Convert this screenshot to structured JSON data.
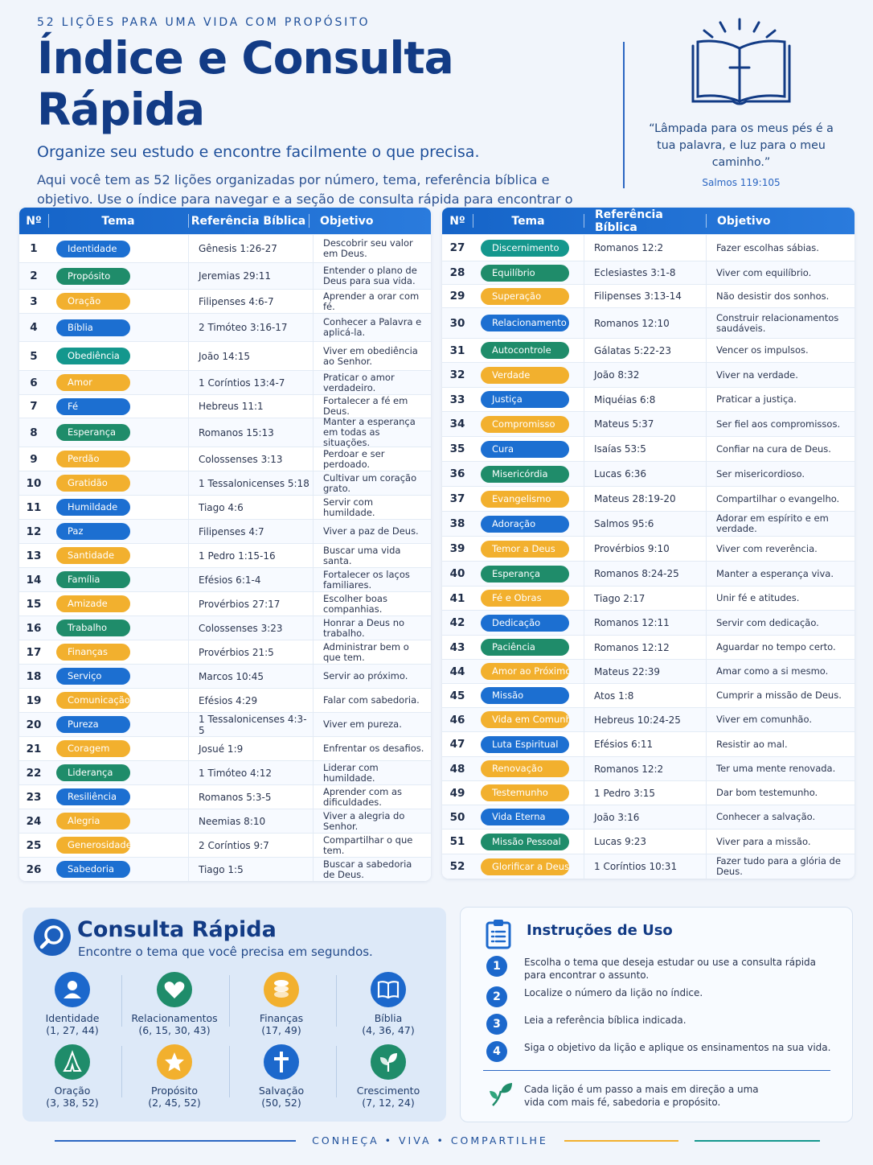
{
  "header": {
    "kicker": "52 LIÇÕES PARA UMA VIDA COM PROPÓSITO",
    "title": "Índice e Consulta Rápida",
    "subtitle": "Organize seu estudo e encontre facilmente o que precisa.",
    "intro": "Aqui você tem as 52 lições organizadas por número, tema, referência bíblica e objetivo. Use o índice para navegar e a seção de consulta rápida para encontrar o assunto que deseja de forma ágil."
  },
  "quote": {
    "text": "“Lâmpada para os meus pés é a tua palavra, e luz para o meu caminho.”",
    "ref": "Salmos 119:105"
  },
  "table": {
    "headers": {
      "num": "Nº",
      "tema": "Tema",
      "ref": "Referência Bíblica",
      "obj": "Objetivo"
    },
    "left": [
      {
        "n": "1",
        "tema": "Identidade",
        "color": "blue",
        "ref": "Gênesis 1:26-27",
        "obj": "Descobrir seu valor em Deus."
      },
      {
        "n": "2",
        "tema": "Propósito",
        "color": "green",
        "ref": "Jeremias 29:11",
        "obj": "Entender o plano de Deus para sua vida."
      },
      {
        "n": "3",
        "tema": "Oração",
        "color": "orange",
        "ref": "Filipenses 4:6-7",
        "obj": "Aprender a orar com fé."
      },
      {
        "n": "4",
        "tema": "Bíblia",
        "color": "blue",
        "ref": "2 Timóteo 3:16-17",
        "obj": "Conhecer a Palavra e aplicá-la."
      },
      {
        "n": "5",
        "tema": "Obediência",
        "color": "teal",
        "ref": "João 14:15",
        "obj": "Viver em obediência ao Senhor."
      },
      {
        "n": "6",
        "tema": "Amor",
        "color": "orange",
        "ref": "1 Coríntios 13:4-7",
        "obj": "Praticar o amor verdadeiro."
      },
      {
        "n": "7",
        "tema": "Fé",
        "color": "blue",
        "ref": "Hebreus 11:1",
        "obj": "Fortalecer a fé em Deus."
      },
      {
        "n": "8",
        "tema": "Esperança",
        "color": "green",
        "ref": "Romanos 15:13",
        "obj": "Manter a esperança em todas as situações."
      },
      {
        "n": "9",
        "tema": "Perdão",
        "color": "orange",
        "ref": "Colossenses 3:13",
        "obj": "Perdoar e ser perdoado."
      },
      {
        "n": "10",
        "tema": "Gratidão",
        "color": "orange",
        "ref": "1 Tessalonicenses 5:18",
        "obj": "Cultivar um coração grato."
      },
      {
        "n": "11",
        "tema": "Humildade",
        "color": "blue",
        "ref": "Tiago 4:6",
        "obj": "Servir com humildade."
      },
      {
        "n": "12",
        "tema": "Paz",
        "color": "blue",
        "ref": "Filipenses 4:7",
        "obj": "Viver a paz de Deus."
      },
      {
        "n": "13",
        "tema": "Santidade",
        "color": "orange",
        "ref": "1 Pedro 1:15-16",
        "obj": "Buscar uma vida santa."
      },
      {
        "n": "14",
        "tema": "Família",
        "color": "green",
        "ref": "Efésios 6:1-4",
        "obj": "Fortalecer os laços familiares."
      },
      {
        "n": "15",
        "tema": "Amizade",
        "color": "orange",
        "ref": "Provérbios 27:17",
        "obj": "Escolher boas companhias."
      },
      {
        "n": "16",
        "tema": "Trabalho",
        "color": "green",
        "ref": "Colossenses 3:23",
        "obj": "Honrar a Deus no trabalho."
      },
      {
        "n": "17",
        "tema": "Finanças",
        "color": "orange",
        "ref": "Provérbios 21:5",
        "obj": "Administrar bem o que tem."
      },
      {
        "n": "18",
        "tema": "Serviço",
        "color": "blue",
        "ref": "Marcos 10:45",
        "obj": "Servir ao próximo."
      },
      {
        "n": "19",
        "tema": "Comunicação",
        "color": "orange",
        "ref": "Efésios 4:29",
        "obj": "Falar com sabedoria."
      },
      {
        "n": "20",
        "tema": "Pureza",
        "color": "blue",
        "ref": "1 Tessalonicenses 4:3-5",
        "obj": "Viver em pureza."
      },
      {
        "n": "21",
        "tema": "Coragem",
        "color": "orange",
        "ref": "Josué 1:9",
        "obj": "Enfrentar os desafios."
      },
      {
        "n": "22",
        "tema": "Liderança",
        "color": "green",
        "ref": "1 Timóteo 4:12",
        "obj": "Liderar com humildade."
      },
      {
        "n": "23",
        "tema": "Resiliência",
        "color": "blue",
        "ref": "Romanos 5:3-5",
        "obj": "Aprender com as dificuldades."
      },
      {
        "n": "24",
        "tema": "Alegria",
        "color": "orange",
        "ref": "Neemias 8:10",
        "obj": "Viver a alegria do Senhor."
      },
      {
        "n": "25",
        "tema": "Generosidade",
        "color": "orange",
        "ref": "2 Coríntios 9:7",
        "obj": "Compartilhar o que tem."
      },
      {
        "n": "26",
        "tema": "Sabedoria",
        "color": "blue",
        "ref": "Tiago 1:5",
        "obj": "Buscar a sabedoria de Deus."
      }
    ],
    "right": [
      {
        "n": "27",
        "tema": "Discernimento",
        "color": "teal",
        "ref": "Romanos 12:2",
        "obj": "Fazer escolhas sábias."
      },
      {
        "n": "28",
        "tema": "Equilíbrio",
        "color": "green",
        "ref": "Eclesiastes 3:1-8",
        "obj": "Viver com equilíbrio."
      },
      {
        "n": "29",
        "tema": "Superação",
        "color": "orange",
        "ref": "Filipenses 3:13-14",
        "obj": "Não desistir dos sonhos."
      },
      {
        "n": "30",
        "tema": "Relacionamento",
        "color": "blue",
        "ref": "Romanos 12:10",
        "obj": "Construir relacionamentos saudáveis."
      },
      {
        "n": "31",
        "tema": "Autocontrole",
        "color": "green",
        "ref": "Gálatas 5:22-23",
        "obj": "Vencer os impulsos."
      },
      {
        "n": "32",
        "tema": "Verdade",
        "color": "orange",
        "ref": "João 8:32",
        "obj": "Viver na verdade."
      },
      {
        "n": "33",
        "tema": "Justiça",
        "color": "blue",
        "ref": "Miquéias 6:8",
        "obj": "Praticar a justiça."
      },
      {
        "n": "34",
        "tema": "Compromisso",
        "color": "orange",
        "ref": "Mateus 5:37",
        "obj": "Ser fiel aos compromissos."
      },
      {
        "n": "35",
        "tema": "Cura",
        "color": "blue",
        "ref": "Isaías 53:5",
        "obj": "Confiar na cura de Deus."
      },
      {
        "n": "36",
        "tema": "Misericórdia",
        "color": "green",
        "ref": "Lucas 6:36",
        "obj": "Ser misericordioso."
      },
      {
        "n": "37",
        "tema": "Evangelismo",
        "color": "orange",
        "ref": "Mateus 28:19-20",
        "obj": "Compartilhar o evangelho."
      },
      {
        "n": "38",
        "tema": "Adoração",
        "color": "blue",
        "ref": "Salmos 95:6",
        "obj": "Adorar em espírito e em verdade."
      },
      {
        "n": "39",
        "tema": "Temor a Deus",
        "color": "orange",
        "ref": "Provérbios 9:10",
        "obj": "Viver com reverência."
      },
      {
        "n": "40",
        "tema": "Esperança",
        "color": "green",
        "ref": "Romanos 8:24-25",
        "obj": "Manter a esperança viva."
      },
      {
        "n": "41",
        "tema": "Fé e Obras",
        "color": "orange",
        "ref": "Tiago 2:17",
        "obj": "Unir fé e atitudes."
      },
      {
        "n": "42",
        "tema": "Dedicação",
        "color": "blue",
        "ref": "Romanos 12:11",
        "obj": "Servir com dedicação."
      },
      {
        "n": "43",
        "tema": "Paciência",
        "color": "green",
        "ref": "Romanos 12:12",
        "obj": "Aguardar no tempo certo."
      },
      {
        "n": "44",
        "tema": "Amor ao Próximo",
        "color": "orange",
        "ref": "Mateus 22:39",
        "obj": "Amar como a si mesmo."
      },
      {
        "n": "45",
        "tema": "Missão",
        "color": "blue",
        "ref": "Atos 1:8",
        "obj": "Cumprir a missão de Deus."
      },
      {
        "n": "46",
        "tema": "Vida em Comunhão",
        "color": "orange",
        "ref": "Hebreus 10:24-25",
        "obj": "Viver em comunhão."
      },
      {
        "n": "47",
        "tema": "Luta Espiritual",
        "color": "blue",
        "ref": "Efésios 6:11",
        "obj": "Resistir ao mal."
      },
      {
        "n": "48",
        "tema": "Renovação",
        "color": "orange",
        "ref": "Romanos 12:2",
        "obj": "Ter uma mente renovada."
      },
      {
        "n": "49",
        "tema": "Testemunho",
        "color": "orange",
        "ref": "1 Pedro 3:15",
        "obj": "Dar bom testemunho."
      },
      {
        "n": "50",
        "tema": "Vida Eterna",
        "color": "blue",
        "ref": "João 3:16",
        "obj": "Conhecer a salvação."
      },
      {
        "n": "51",
        "tema": "Missão Pessoal",
        "color": "green",
        "ref": "Lucas 9:23",
        "obj": "Viver para a missão."
      },
      {
        "n": "52",
        "tema": "Glorificar a Deus",
        "color": "orange",
        "ref": "1 Coríntios 10:31",
        "obj": "Fazer tudo para a glória de Deus."
      }
    ]
  },
  "quick": {
    "title": "Consulta Rápida",
    "subtitle": "Encontre o tema que você precisa em segundos.",
    "items": [
      {
        "label": "Identidade",
        "nums": "(1, 27, 44)",
        "icon": "person-icon",
        "color": "#1c68cc"
      },
      {
        "label": "Relacionamentos",
        "nums": "(6, 15, 30, 43)",
        "icon": "heart-icon",
        "color": "#1f8c6a"
      },
      {
        "label": "Finanças",
        "nums": "(17, 49)",
        "icon": "coins-icon",
        "color": "#f2b02e"
      },
      {
        "label": "Bíblia",
        "nums": "(4, 36, 47)",
        "icon": "book-icon",
        "color": "#1c68cc"
      },
      {
        "label": "Oração",
        "nums": "(3, 38, 52)",
        "icon": "praying-hands-icon",
        "color": "#1f8c6a"
      },
      {
        "label": "Propósito",
        "nums": "(2, 45, 52)",
        "icon": "star-icon",
        "color": "#f2b02e"
      },
      {
        "label": "Salvação",
        "nums": "(50, 52)",
        "icon": "cross-icon",
        "color": "#1c68cc"
      },
      {
        "label": "Crescimento",
        "nums": "(7, 12, 24)",
        "icon": "sprout-icon",
        "color": "#1f8c6a"
      }
    ]
  },
  "instructions": {
    "title": "Instruções de Uso",
    "steps": [
      {
        "n": "1",
        "text": "Escolha o tema que deseja estudar ou use a consulta rápida para encontrar o assunto."
      },
      {
        "n": "2",
        "text": "Localize o número da lição no índice."
      },
      {
        "n": "3",
        "text": "Leia a referência bíblica indicada."
      },
      {
        "n": "4",
        "text": "Siga o objetivo da lição e aplique os ensinamentos na sua vida."
      }
    ],
    "footer": "Cada lição é um passo a mais em direção a uma vida com mais fé, sabedoria e propósito."
  },
  "footer": {
    "text": "CONHEÇA  •  VIVA  •  COMPARTILHE"
  }
}
